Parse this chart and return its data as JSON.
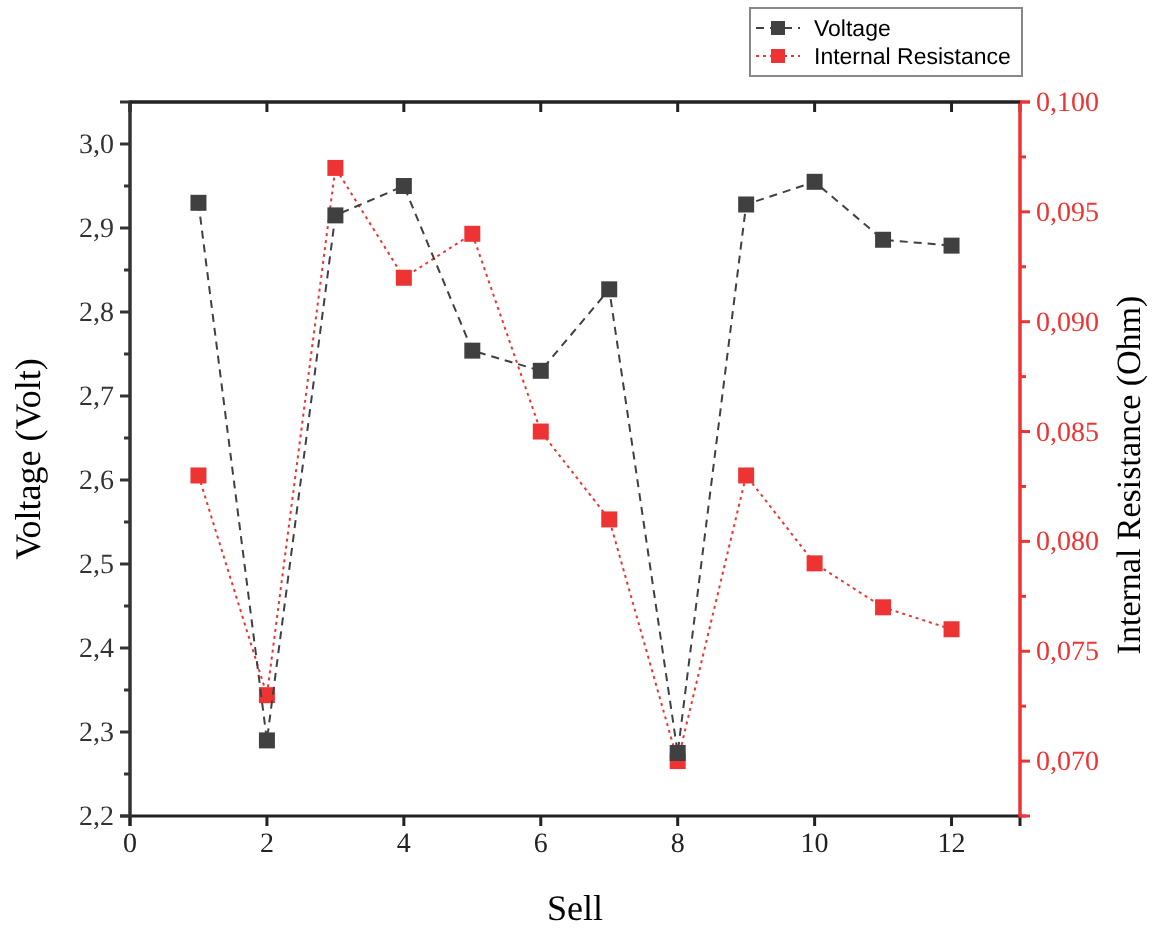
{
  "chart_data": {
    "type": "line",
    "xlabel": "Sell",
    "ylabel": "Voltage (Volt)",
    "y2label": "Internal Resistance (Ohm)",
    "x": [
      1,
      2,
      3,
      4,
      5,
      6,
      7,
      8,
      9,
      10,
      11,
      12
    ],
    "xlim": [
      0,
      13
    ],
    "xticks": [
      0,
      2,
      4,
      6,
      8,
      10,
      12
    ],
    "ylim": [
      2.2,
      3.05
    ],
    "yticks": [
      {
        "value": 2.2,
        "label": "2,2"
      },
      {
        "value": 2.3,
        "label": "2,3"
      },
      {
        "value": 2.4,
        "label": "2,4"
      },
      {
        "value": 2.5,
        "label": "2,5"
      },
      {
        "value": 2.6,
        "label": "2,6"
      },
      {
        "value": 2.7,
        "label": "2,7"
      },
      {
        "value": 2.8,
        "label": "2,8"
      },
      {
        "value": 2.9,
        "label": "2,9"
      },
      {
        "value": 3.0,
        "label": "3,0"
      }
    ],
    "y2lim": [
      0.0675,
      0.1
    ],
    "y2ticks": [
      {
        "value": 0.07,
        "label": "0,070"
      },
      {
        "value": 0.075,
        "label": "0,075"
      },
      {
        "value": 0.08,
        "label": "0,080"
      },
      {
        "value": 0.085,
        "label": "0,085"
      },
      {
        "value": 0.09,
        "label": "0,090"
      },
      {
        "value": 0.095,
        "label": "0,095"
      },
      {
        "value": 0.1,
        "label": "0,100"
      }
    ],
    "marker": "square",
    "legend": "top right",
    "grid": false,
    "series": [
      {
        "name": "Voltage",
        "color": "#404040",
        "line_style": "dashed",
        "values": [
          2.93,
          2.29,
          2.915,
          2.95,
          2.754,
          2.73,
          2.827,
          2.275,
          2.928,
          2.955,
          2.886,
          2.879
        ]
      },
      {
        "name": "Internal Resistance",
        "color": "#ee3333",
        "line_style": "dotted",
        "axis": "y2",
        "values": [
          0.083,
          0.073,
          0.097,
          0.092,
          0.094,
          0.085,
          0.081,
          0.07,
          0.083,
          0.079,
          0.077,
          0.076
        ]
      }
    ]
  }
}
